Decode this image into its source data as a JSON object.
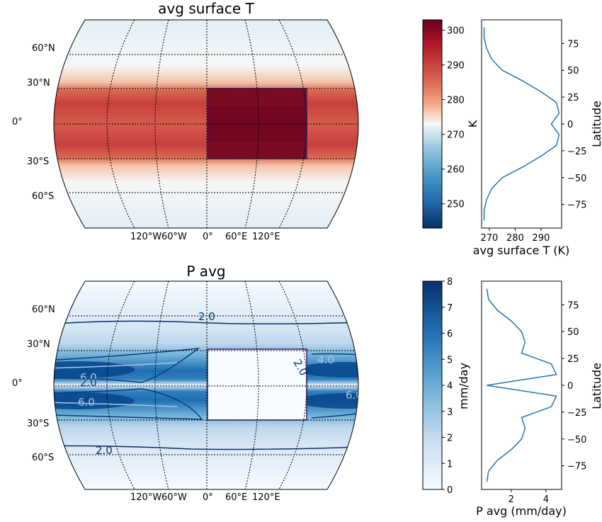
{
  "chart_data": [
    {
      "type": "heatmap",
      "title": "avg surface T",
      "projection": "robinson",
      "lat_labels": [
        "60°N",
        "30°N",
        "0°",
        "30°S",
        "60°S"
      ],
      "lon_labels": [
        "120°W",
        "60°W",
        "0°",
        "60°E",
        "120°E"
      ],
      "colormap": "RdBu_r",
      "colorbar": {
        "label": "K",
        "ticks": [
          "300",
          "290",
          "280",
          "270",
          "260",
          "250"
        ],
        "range": [
          243,
          303
        ]
      },
      "land_box": {
        "lon": [
          0,
          100
        ],
        "lat": [
          -30,
          30
        ]
      },
      "zonal_profile": {
        "lat": [
          -90,
          -80,
          -70,
          -60,
          -50,
          -40,
          -30,
          -20,
          -10,
          0,
          10,
          20,
          30,
          40,
          50,
          60,
          70,
          80,
          90
        ],
        "values": [
          268,
          268,
          269,
          271,
          275,
          283,
          290,
          296,
          297,
          294,
          297,
          296,
          290,
          283,
          275,
          271,
          269,
          268,
          268
        ]
      }
    },
    {
      "type": "heatmap",
      "title": "P avg",
      "projection": "robinson",
      "lat_labels": [
        "60°N",
        "30°N",
        "0°",
        "30°S",
        "60°S"
      ],
      "lon_labels": [
        "120°W",
        "60°W",
        "0°",
        "60°E",
        "120°E"
      ],
      "colormap": "Blues",
      "colorbar": {
        "label": "mm/day",
        "ticks": [
          "8",
          "7",
          "6",
          "5",
          "4",
          "3",
          "2",
          "1",
          "0"
        ],
        "range": [
          0,
          8
        ]
      },
      "contour_labels": [
        "2.0",
        "6.0",
        "2.0",
        "6.0",
        "2.0",
        "4.0",
        "6.0",
        "4.0",
        "2.0"
      ],
      "land_box": {
        "lon": [
          0,
          100
        ],
        "lat": [
          -30,
          30
        ]
      },
      "zonal_profile": {
        "lat": [
          -90,
          -80,
          -70,
          -60,
          -50,
          -40,
          -30,
          -20,
          -10,
          0,
          10,
          20,
          30,
          40,
          50,
          60,
          70,
          80,
          90
        ],
        "values": [
          0.6,
          0.7,
          1.2,
          2.0,
          2.6,
          2.8,
          2.6,
          4.3,
          4.6,
          0.6,
          4.6,
          4.3,
          2.6,
          2.8,
          2.6,
          2.0,
          1.2,
          0.7,
          0.6
        ]
      }
    }
  ],
  "panels": {
    "top": {
      "title": "avg surface T",
      "cb_label": "K",
      "cb_ticks": [
        "300",
        "290",
        "280",
        "270",
        "260",
        "250"
      ],
      "profile_xlabel": "avg surface T (K)",
      "profile_xticks": [
        "270",
        "280",
        "290"
      ],
      "profile_ylabel": "Latitude",
      "profile_yticks": [
        "75",
        "50",
        "25",
        "0",
        "−25",
        "−50",
        "−75"
      ]
    },
    "bottom": {
      "title": "P avg",
      "cb_label": "mm/day",
      "cb_ticks": [
        "8",
        "7",
        "6",
        "5",
        "4",
        "3",
        "2",
        "1",
        "0"
      ],
      "profile_xlabel": "P avg (mm/day)",
      "profile_xticks": [
        "2",
        "4"
      ],
      "profile_ylabel": "Latitude",
      "profile_yticks": [
        "75",
        "50",
        "25",
        "0",
        "−25",
        "−50",
        "−75"
      ]
    }
  }
}
